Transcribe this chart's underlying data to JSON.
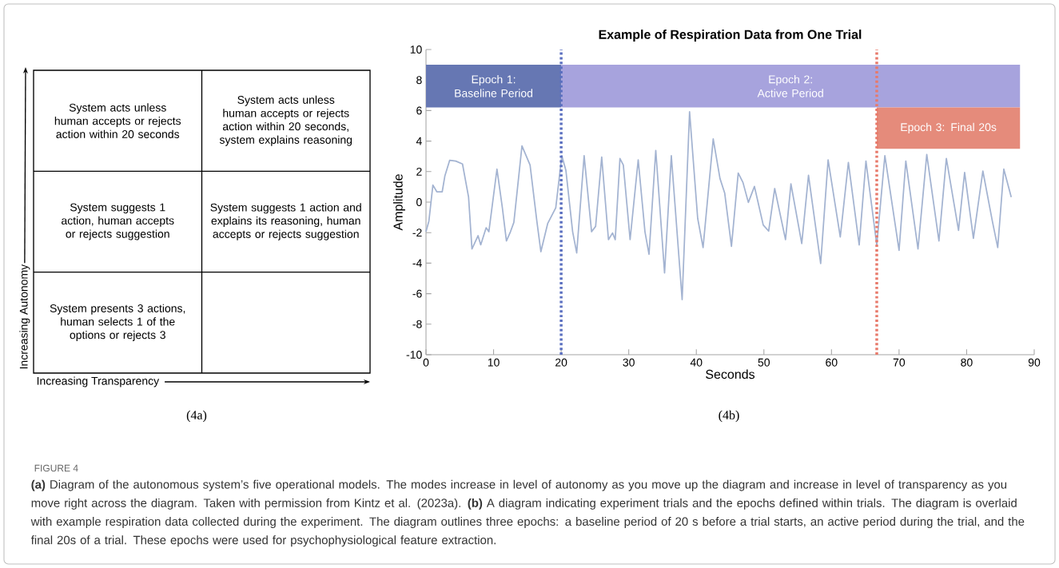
{
  "chart_data": [
    {
      "type": "other",
      "xlabel": "Increasing Transparency",
      "ylabel": "Increasing Autonomy",
      "annotations": [
        "System acts unless human accepts or rejects action within 20 seconds",
        "System acts unless human accepts or rejects action within 20 seconds, system explains reasoning",
        "System suggests 1 action, human accepts or rejects suggestion",
        "System suggests 1 action and explains its reasoning, human accepts or rejects suggestion",
        "System presents 3 actions, human selects 1 of the options or rejects 3",
        "(4a)"
      ]
    },
    {
      "type": "line",
      "title": "Example of Respiration Data from One Trial",
      "xlabel": "Seconds",
      "ylabel": "Amplitude",
      "x": [
        0,
        0.43,
        1.02,
        1.6,
        2.4,
        2.8,
        3.5,
        4.4,
        5.4,
        6.3,
        6.8,
        7.7,
        8.1,
        8.9,
        9.3,
        10.5,
        11.3,
        11.9,
        12.5,
        13.0,
        14.2,
        15.4,
        16.4,
        17.0,
        18.0,
        19.2,
        20.1,
        20.7,
        21.7,
        22.3,
        23.4,
        24.5,
        25.1,
        26.0,
        27.0,
        27.6,
        28.0,
        28.7,
        29.2,
        30.2,
        31.4,
        32.4,
        33.0,
        34.0,
        35.3,
        36.3,
        37.9,
        39.0,
        40.2,
        41.0,
        42.5,
        43.5,
        44.2,
        45.2,
        46.2,
        46.9,
        47.7,
        48.6,
        49.9,
        50.7,
        51.6,
        53.2,
        54.0,
        55.6,
        56.6,
        58.4,
        59.5,
        61.3,
        62.5,
        64.1,
        65.1,
        66.7,
        67.9,
        70.0,
        71.0,
        72.8,
        74.1,
        75.9,
        77.0,
        78.8,
        79.7,
        81.0,
        82.4,
        83.8,
        84.6,
        85.5,
        86.6
      ],
      "series": [
        {
          "color": "#a3b3d1",
          "values": [
            -1.94,
            -1.24,
            1.12,
            0.68,
            0.68,
            1.73,
            2.74,
            2.69,
            2.5,
            0.33,
            -3.07,
            -2.2,
            -2.8,
            -1.68,
            -1.94,
            2.16,
            -0.37,
            -2.55,
            -1.94,
            -1.33,
            3.68,
            2.43,
            -1.24,
            -3.25,
            -1.41,
            -0.37,
            3.04,
            2.08,
            -1.94,
            -3.33,
            3.04,
            -1.94,
            -1.59,
            2.95,
            -2.46,
            -2.02,
            -2.46,
            2.86,
            2.43,
            -2.46,
            2.77,
            -1.94,
            -3.42,
            3.39,
            -4.64,
            3.04,
            -6.39,
            5.92,
            -1.06,
            -2.98,
            4.14,
            1.55,
            0.59,
            -2.9,
            1.9,
            1.29,
            -0.02,
            1.03,
            -1.5,
            -1.9,
            0.89,
            -2.46,
            1.2,
            -2.72,
            1.76,
            -4.03,
            2.77,
            -2.29,
            2.6,
            -2.81,
            2.69,
            -2.81,
            3.04,
            -3.16,
            2.69,
            -3.07,
            3.12,
            -2.55,
            2.86,
            -1.85,
            1.94,
            -2.37,
            2.04,
            -1.24,
            -2.98,
            2.16,
            0.33
          ]
        }
      ],
      "xlim": [
        0,
        90
      ],
      "ylim": [
        -10,
        10
      ],
      "xticks": [
        0,
        10,
        20,
        30,
        40,
        50,
        60,
        70,
        80,
        90
      ],
      "yticks": [
        -10,
        -8,
        -6,
        -4,
        -2,
        0,
        2,
        4,
        6,
        8,
        10
      ],
      "marker": "none",
      "line_style": "solid",
      "bands": [
        {
          "axis": "x",
          "from": 0,
          "to": 20,
          "label": "Epoch 1: Baseline Period",
          "color": "#6677b3"
        },
        {
          "axis": "x",
          "from": 20,
          "to": 87.9,
          "label": "Epoch 2: Active Period",
          "color": "#a7a3dd"
        },
        {
          "axis": "x",
          "from": 66.7,
          "to": 87.9,
          "label": "Epoch 3: Final 20s",
          "color": "#e58b7b"
        }
      ],
      "ref_lines": [
        {
          "axis": "x",
          "value": 20,
          "color": "#5a6fc0",
          "line_style": "dotted"
        },
        {
          "axis": "x",
          "value": 66.7,
          "color": "#e8796a",
          "line_style": "dotted"
        }
      ],
      "annotations": [
        "(4b)",
        "FIGURE 4",
        "**(a)** Diagram of the autonomous system’s five operational models. The modes increase in level of autonomy as you move up the diagram and increase in level of transparency as you move right across the diagram. Taken with permission from Kintz et al. (2023a). **(b)** A diagram indicating experiment trials and the epochs defined within trials. The diagram is overlaid with example respiration data collected during the experiment. The diagram outlines three epochs: a baseline period of 20 s before a trial starts, an active period during the trial, and the final 20s of a trial. These epochs were used for psychophysiological feature extraction."
      ]
    }
  ]
}
